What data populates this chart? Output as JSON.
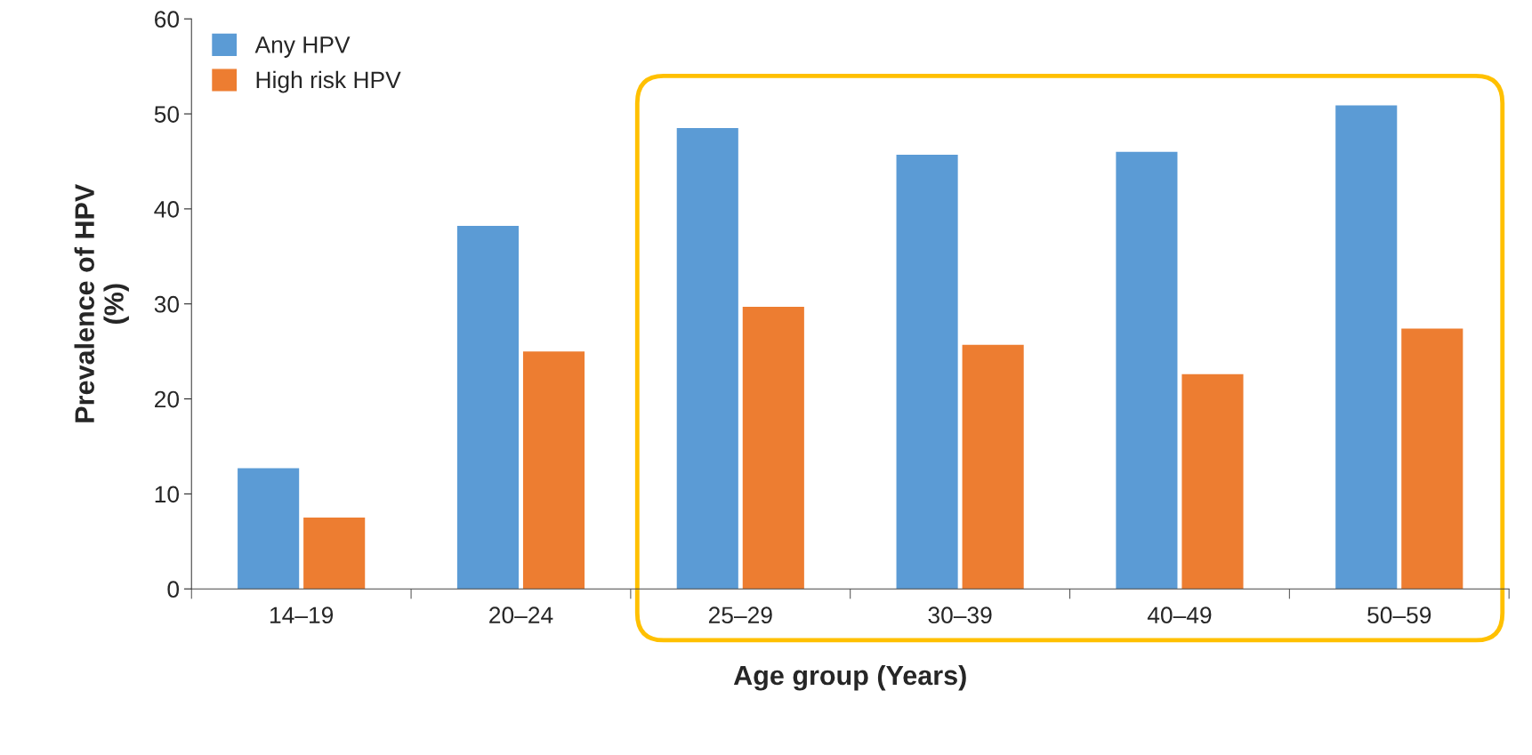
{
  "chart_data": {
    "type": "bar",
    "xlabel": "Age group (Years)",
    "ylabel": "Prevalence of HPV\n(%)",
    "categories": [
      "14–19",
      "20–24",
      "25–29",
      "30–39",
      "40–49",
      "50–59"
    ],
    "series": [
      {
        "name": "Any HPV",
        "color": "#5b9bd5",
        "values": [
          12.7,
          38.2,
          48.5,
          45.7,
          46.0,
          50.9
        ]
      },
      {
        "name": "High risk HPV",
        "color": "#ed7d31",
        "values": [
          7.5,
          25.0,
          29.7,
          25.7,
          22.6,
          27.4
        ]
      }
    ],
    "ylim": [
      0,
      60
    ],
    "yticks": [
      0,
      10,
      20,
      30,
      40,
      50,
      60
    ],
    "grid": false,
    "legend": "top left"
  }
}
